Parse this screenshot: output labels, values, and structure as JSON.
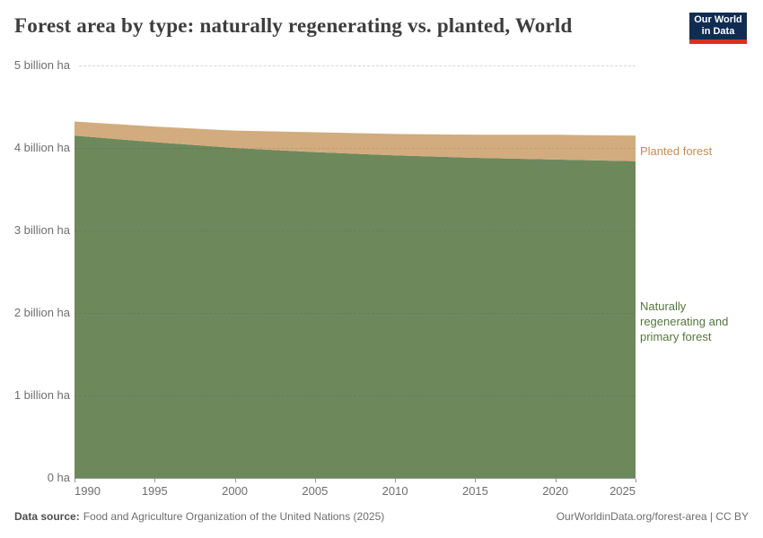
{
  "header": {
    "title": "Forest area by type: naturally regenerating vs. planted, World",
    "logo": {
      "line1": "Our World",
      "line2": "in Data"
    }
  },
  "chart_data": {
    "type": "area",
    "stacked": true,
    "title": "Forest area by type: naturally regenerating vs. planted, World",
    "unit": "billion ha",
    "x": [
      1990,
      1995,
      2000,
      2005,
      2010,
      2015,
      2020,
      2025
    ],
    "series": [
      {
        "name": "Naturally regenerating and primary forest",
        "color": "#6d895c",
        "label_color": "#54763c",
        "values": [
          4.15,
          4.07,
          4.0,
          3.95,
          3.91,
          3.88,
          3.86,
          3.84
        ]
      },
      {
        "name": "Planted forest",
        "color": "#d2ac7e",
        "label_color": "#c68c53",
        "values": [
          0.17,
          0.19,
          0.21,
          0.24,
          0.26,
          0.28,
          0.3,
          0.31
        ]
      }
    ],
    "xlim": [
      1990,
      2025
    ],
    "ylim": [
      0,
      5
    ],
    "grid": "dashed-horizontal",
    "legend_position": "right-edge-labels",
    "y_ticks": [
      {
        "value": 5,
        "label": "5 billion ha"
      },
      {
        "value": 4,
        "label": "4 billion ha"
      },
      {
        "value": 3,
        "label": "3 billion ha"
      },
      {
        "value": 2,
        "label": "2 billion ha"
      },
      {
        "value": 1,
        "label": "1 billion ha"
      },
      {
        "value": 0,
        "label": "0 ha"
      }
    ],
    "x_ticks": [
      "1990",
      "1995",
      "2000",
      "2005",
      "2010",
      "2015",
      "2020",
      "2025"
    ],
    "right_labels": {
      "planted": "Planted forest",
      "natural_lines": [
        "Naturally",
        "regenerating and",
        "primary forest"
      ]
    }
  },
  "footer": {
    "source_label": "Data source:",
    "source_text": "Food and Agriculture Organization of the United Nations (2025)",
    "credit": "OurWorldinData.org/forest-area | CC BY"
  },
  "colors": {
    "title": "#3d3d3d",
    "tick_text": "#6e6e6e",
    "axis": "#969696",
    "logo_navy": "#112c52",
    "logo_red": "#d7301b",
    "natural_area": "#6d895c",
    "planted_area": "#d2ac7e"
  }
}
